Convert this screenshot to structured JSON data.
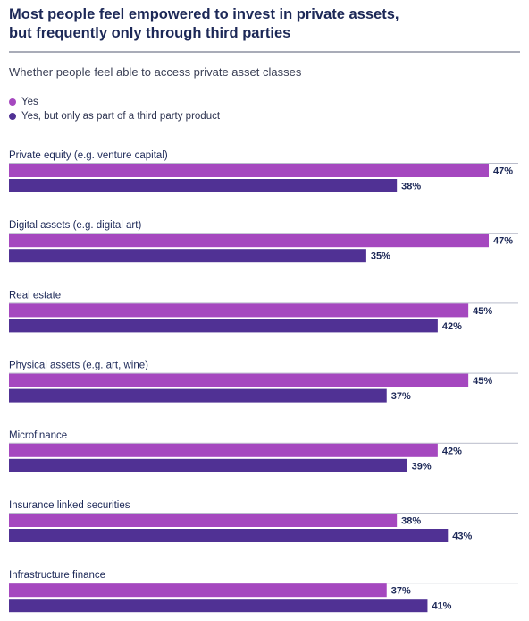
{
  "header": {
    "title_line1": "Most people feel empowered to invest in private assets,",
    "title_line2": "but frequently only through third parties",
    "subtitle": "Whether people feel able to access private asset classes"
  },
  "legend": [
    {
      "label": "Yes",
      "color": "#a548bf"
    },
    {
      "label": "Yes, but only as part of a third party product",
      "color": "#503194"
    }
  ],
  "chart_data": {
    "type": "bar",
    "orientation": "horizontal",
    "title": "Most people feel empowered to invest in private assets, but frequently only through third parties",
    "subtitle": "Whether people feel able to access private asset classes",
    "categories": [
      "Private equity (e.g. venture capital)",
      "Digital assets (e.g. digital art)",
      "Real estate",
      "Physical assets (e.g. art, wine)",
      "Microfinance",
      "Insurance linked securities",
      "Infrastructure finance"
    ],
    "series": [
      {
        "name": "Yes",
        "color": "#a548bf",
        "values": [
          47,
          47,
          45,
          45,
          42,
          38,
          37
        ]
      },
      {
        "name": "Yes, but only as part of a third party product",
        "color": "#503194",
        "values": [
          38,
          35,
          42,
          37,
          39,
          43,
          41
        ]
      }
    ],
    "value_suffix": "%",
    "xlim": [
      0,
      50
    ],
    "legend_position": "top-left",
    "grid": false
  }
}
